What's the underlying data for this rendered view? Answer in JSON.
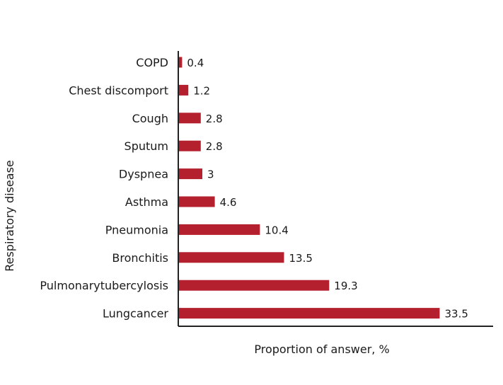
{
  "chart_data": {
    "type": "bar",
    "orientation": "horizontal",
    "categories": [
      "COPD",
      "Chest discomport",
      "Cough",
      "Sputum",
      "Dyspnea",
      "Asthma",
      "Pneumonia",
      "Bronchitis",
      "Pulmonarytubercylosis",
      "Lungcancer"
    ],
    "values": [
      0.4,
      1.2,
      2.8,
      2.8,
      3,
      4.6,
      10.4,
      13.5,
      19.3,
      33.5
    ],
    "value_labels": [
      "0.4",
      "1.2",
      "2.8",
      "2.8",
      "3",
      "4.6",
      "10.4",
      "13.5",
      "19.3",
      "33.5"
    ],
    "xlabel": "Proportion of answer, %",
    "ylabel": "Respiratory disease",
    "xlim": [
      0,
      40
    ],
    "bar_color": "#b5202e",
    "axis_color": "#222222",
    "grid": false
  }
}
